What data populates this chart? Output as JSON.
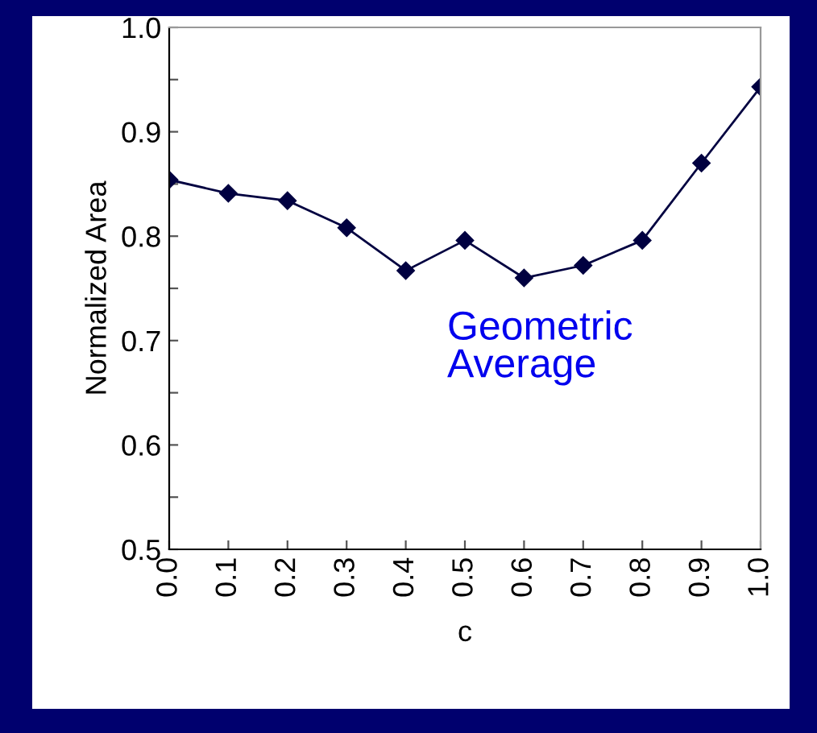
{
  "chart_data": {
    "type": "line",
    "xlabel": "c",
    "ylabel": "Normalized Area",
    "x": [
      0.0,
      0.1,
      0.2,
      0.3,
      0.4,
      0.5,
      0.6,
      0.7,
      0.8,
      0.9,
      1.0
    ],
    "series": [
      {
        "color": "#000040",
        "values": [
          0.854,
          0.841,
          0.834,
          0.808,
          0.767,
          0.796,
          0.76,
          0.772,
          0.796,
          0.87,
          0.943
        ]
      }
    ],
    "xlim": [
      0,
      1
    ],
    "xticks": [
      {
        "value": 0,
        "label": "0.0"
      },
      0.1,
      0.2,
      0.3,
      0.4,
      0.5,
      0.6,
      0.7,
      0.8,
      0.9,
      {
        "value": 1,
        "label": "1.0"
      }
    ],
    "ylim": [
      0.5,
      1.0
    ],
    "yticks": [
      0.5,
      {
        "value": 0.55,
        "label": null
      },
      0.6,
      {
        "value": 0.65,
        "label": null
      },
      0.7,
      {
        "value": 0.75,
        "label": null
      },
      0.8,
      {
        "value": 0.85,
        "label": null
      },
      0.9,
      {
        "value": 0.95,
        "label": null
      },
      {
        "value": 1.0,
        "label": "1.0"
      }
    ],
    "annotations": [
      "Geometric\nAverage"
    ],
    "marker": "diamond",
    "line_style": "solid",
    "grid": false
  }
}
